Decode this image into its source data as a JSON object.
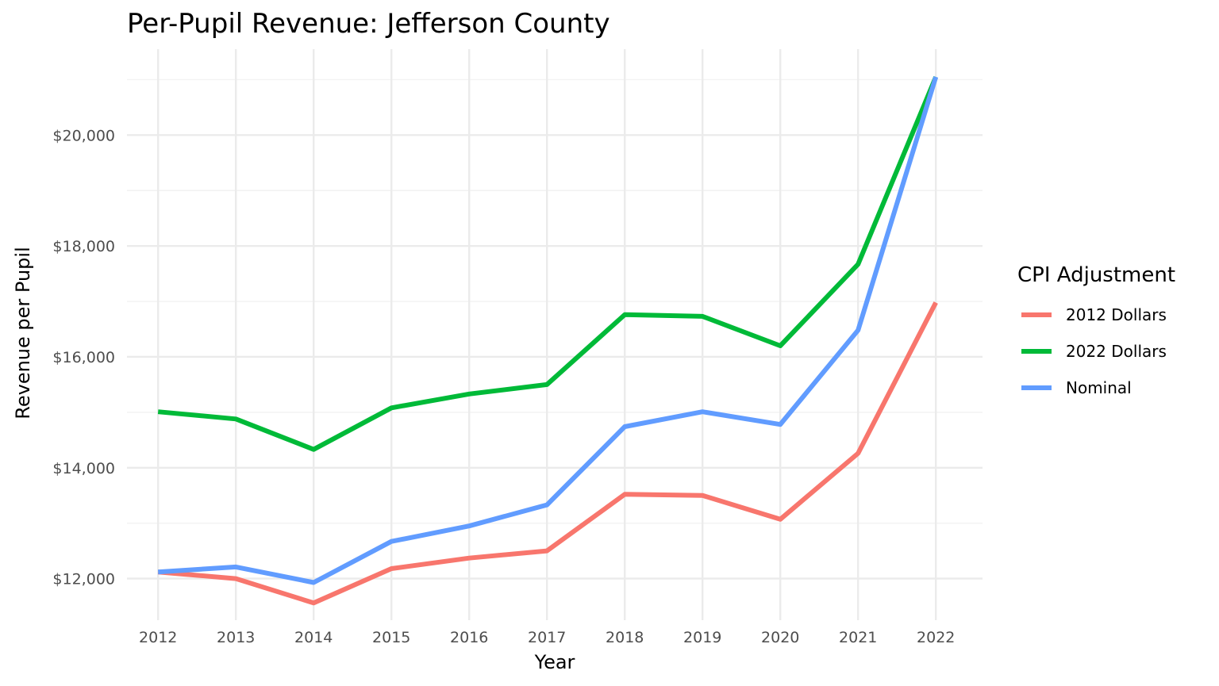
{
  "chart_data": {
    "type": "line",
    "title": "Per-Pupil Revenue: Jefferson County",
    "xlabel": "Year",
    "ylabel": "Revenue per Pupil",
    "x": [
      2012,
      2013,
      2014,
      2015,
      2016,
      2017,
      2018,
      2019,
      2020,
      2021,
      2022
    ],
    "x_tick_labels": [
      "2012",
      "2013",
      "2014",
      "2015",
      "2016",
      "2017",
      "2018",
      "2019",
      "2020",
      "2021",
      "2022"
    ],
    "y_ticks": [
      12000,
      14000,
      16000,
      18000,
      20000
    ],
    "y_tick_labels": [
      "$12,000",
      "$14,000",
      "$16,000",
      "$18,000",
      "$20,000"
    ],
    "xlim": [
      2011.6,
      2022.6
    ],
    "ylim": [
      11250,
      21550
    ],
    "grid": true,
    "legend": {
      "title": "CPI Adjustment",
      "position": "right"
    },
    "series": [
      {
        "name": "2012 Dollars",
        "color": "#F8766D",
        "values": [
          12120,
          12000,
          11560,
          12180,
          12370,
          12500,
          13520,
          13500,
          13070,
          14260,
          16980
        ]
      },
      {
        "name": "2022 Dollars",
        "color": "#00BA38",
        "values": [
          15010,
          14880,
          14330,
          15080,
          15330,
          15500,
          16760,
          16730,
          16200,
          17670,
          21050
        ]
      },
      {
        "name": "Nominal",
        "color": "#619CFF",
        "values": [
          12120,
          12210,
          11930,
          12670,
          12950,
          13330,
          14740,
          15010,
          14780,
          16480,
          21050
        ]
      }
    ]
  }
}
